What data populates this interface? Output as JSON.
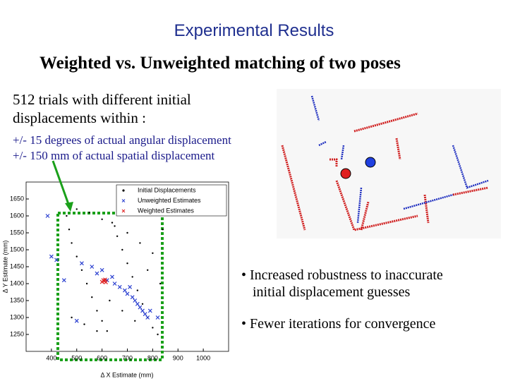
{
  "header": {
    "title": "Experimental Results",
    "subtitle": "Weighted vs. Unweighted matching of two poses"
  },
  "intro": [
    "512 trials with different initial",
    "displacements within :"
  ],
  "ranges": [
    "+/- 15 degrees of actual angular displacement",
    "+/- 150 mm of actual spatial displacement"
  ],
  "bullets": [
    [
      "Increased robustness to inaccurate",
      "initial displacement guesses"
    ],
    [
      "Fewer iterations for convergence"
    ]
  ],
  "chart_data": {
    "type": "scatter",
    "xlabel": "Δ X Estimate (mm)",
    "ylabel": "Δ Y Estimate (mm)",
    "xlim": [
      300,
      1100
    ],
    "ylim": [
      1200,
      1700
    ],
    "xticks": [
      400,
      500,
      600,
      700,
      800,
      900,
      1000
    ],
    "yticks": [
      1250,
      1300,
      1350,
      1400,
      1450,
      1500,
      1550,
      1600,
      1650
    ],
    "legend": "upper right",
    "series": [
      {
        "name": "Initial Displacements",
        "color": "#000000",
        "marker": "dot",
        "x": [
          460,
          470,
          480,
          500,
          520,
          540,
          560,
          580,
          600,
          620,
          640,
          660,
          680,
          700,
          720,
          740,
          760,
          780,
          800,
          820,
          840,
          500,
          550,
          600,
          650,
          700,
          750,
          800,
          480,
          530,
          580,
          630,
          680,
          730,
          780,
          830
        ],
        "values": [
          1600,
          1560,
          1520,
          1480,
          1440,
          1400,
          1360,
          1320,
          1290,
          1260,
          1580,
          1540,
          1500,
          1460,
          1420,
          1380,
          1340,
          1300,
          1270,
          1250,
          1560,
          1620,
          1610,
          1590,
          1570,
          1550,
          1520,
          1490,
          1300,
          1280,
          1260,
          1350,
          1320,
          1290,
          1440,
          1400
        ]
      },
      {
        "name": "Unweighted Estimates",
        "color": "#2a3fd0",
        "marker": "x",
        "x": [
          385,
          400,
          520,
          560,
          580,
          600,
          620,
          640,
          650,
          670,
          690,
          700,
          710,
          720,
          730,
          740,
          750,
          760,
          770,
          780,
          790,
          820,
          420,
          450,
          500
        ],
        "values": [
          1600,
          1480,
          1460,
          1450,
          1430,
          1440,
          1410,
          1420,
          1400,
          1390,
          1380,
          1370,
          1390,
          1360,
          1350,
          1340,
          1330,
          1320,
          1310,
          1300,
          1320,
          1300,
          1470,
          1410,
          1290
        ]
      },
      {
        "name": "Weighted Estimates",
        "color": "#e02020",
        "marker": "x",
        "x": [
          600,
          605,
          610,
          612,
          615
        ],
        "values": [
          1405,
          1410,
          1408,
          1412,
          1404
        ]
      }
    ]
  }
}
